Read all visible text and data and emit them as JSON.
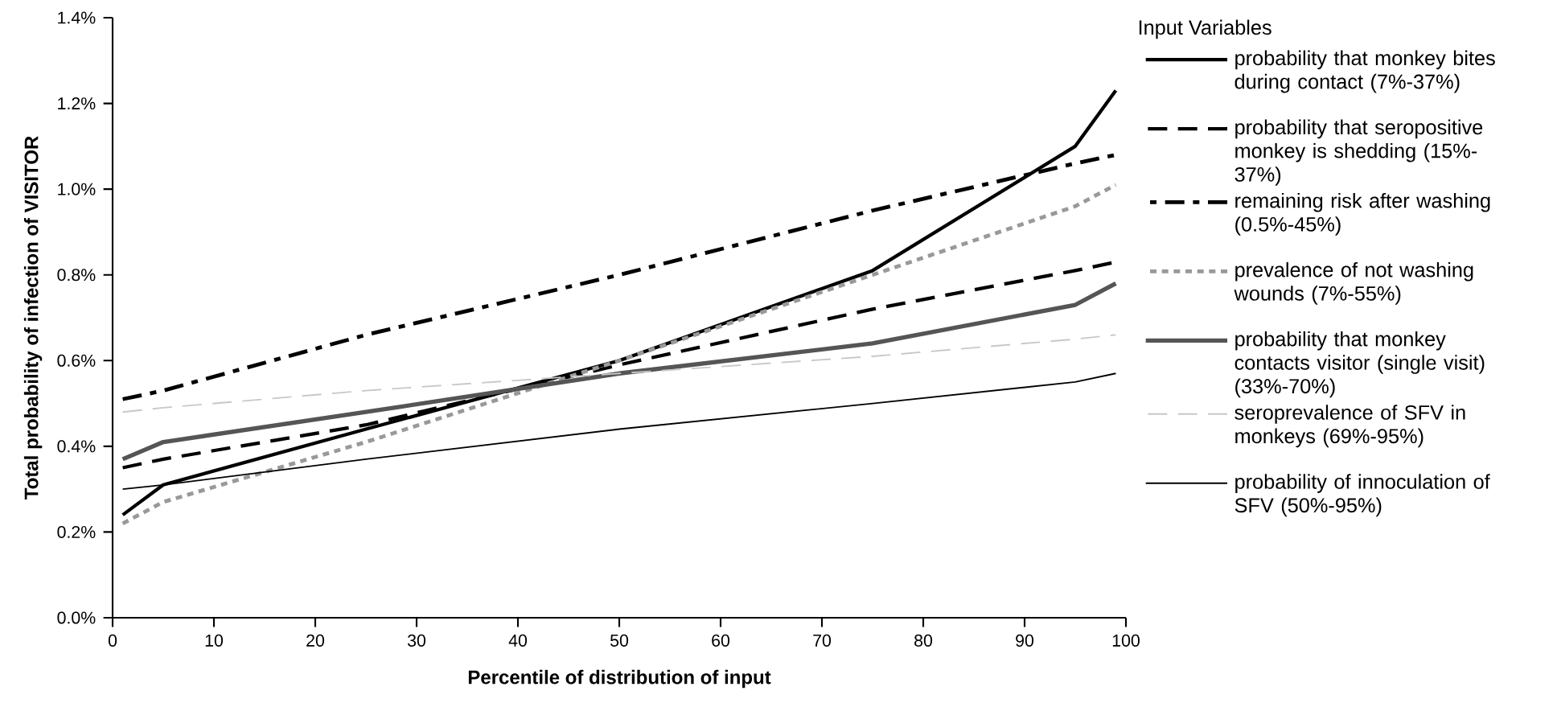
{
  "chart_data": {
    "type": "line",
    "xlabel": "Percentile of distribution of input",
    "ylabel": "Total probability of infection of VISITOR",
    "legend_title": "Input Variables",
    "legend": "right",
    "grid": false,
    "marker": "none",
    "xlim": [
      0,
      100
    ],
    "xticks": [
      0,
      10,
      20,
      30,
      40,
      50,
      60,
      70,
      80,
      90,
      100
    ],
    "ylim": [
      0,
      1.4
    ],
    "yticks": [
      {
        "value": 0,
        "label": "0.0%"
      },
      {
        "value": 0.2,
        "label": "0.2%"
      },
      {
        "value": 0.4,
        "label": "0.4%"
      },
      {
        "value": 0.6,
        "label": "0.6%"
      },
      {
        "value": 0.8,
        "label": "0.8%"
      },
      {
        "value": 1.0,
        "label": "1.0%"
      },
      {
        "value": 1.2,
        "label": "1.2%"
      },
      {
        "value": 1.4,
        "label": "1.4%"
      }
    ],
    "x": [
      1,
      5,
      25,
      50,
      75,
      95,
      99
    ],
    "series": [
      {
        "name": "probability that monkey bites during contact (7%-37%)",
        "color": "#000000",
        "line_style": "solid",
        "values": [
          0.24,
          0.31,
          0.44,
          0.6,
          0.81,
          1.1,
          1.23
        ]
      },
      {
        "name": "probability that seropositive monkey is shedding (15%-37%)",
        "color": "#000000",
        "line_style": "dashed",
        "values": [
          0.35,
          0.37,
          0.45,
          0.59,
          0.72,
          0.81,
          0.83
        ]
      },
      {
        "name": "remaining risk after washing (0.5%-45%)",
        "color": "#000000",
        "line_style": "dashdot",
        "values": [
          0.51,
          0.53,
          0.66,
          0.8,
          0.95,
          1.06,
          1.08
        ]
      },
      {
        "name": "prevalence of not washing wounds (7%-55%)",
        "color": "#999999",
        "line_style": "dotted",
        "values": [
          0.22,
          0.27,
          0.41,
          0.6,
          0.8,
          0.96,
          1.01
        ]
      },
      {
        "name": "probability that monkey contacts visitor (single visit) (33%-70%)",
        "color": "#555555",
        "line_style": "solid",
        "values": [
          0.37,
          0.41,
          0.48,
          0.57,
          0.64,
          0.73,
          0.78
        ]
      },
      {
        "name": "seroprevalence of SFV in monkeys (69%-95%)",
        "color": "#c8c8c8",
        "line_style": "dashed",
        "values": [
          0.48,
          0.49,
          0.53,
          0.57,
          0.61,
          0.65,
          0.66
        ]
      },
      {
        "name": "probability of innoculation of SFV (50%-95%)",
        "color": "#000000",
        "line_style": "solid",
        "values": [
          0.3,
          0.31,
          0.37,
          0.44,
          0.5,
          0.55,
          0.57
        ]
      }
    ]
  }
}
